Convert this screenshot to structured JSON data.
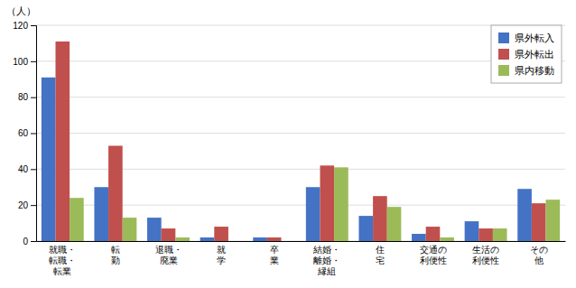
{
  "chart_data": {
    "type": "bar",
    "ylabel": "（人）",
    "categories": [
      "就職・\n転職・\n転業",
      "転\n勤",
      "退職・\n廃業",
      "就\n学",
      "卒\n業",
      "結婚・\n離婚・\n縁組",
      "住\n宅",
      "交通の\n利便性",
      "生活の\n利便性",
      "その\n他"
    ],
    "series": [
      {
        "name": "県外転入",
        "color": "#4472C4",
        "values": [
          91,
          30,
          13,
          2,
          2,
          30,
          14,
          4,
          11,
          29
        ]
      },
      {
        "name": "県外転出",
        "color": "#C0504D",
        "values": [
          111,
          53,
          7,
          8,
          2,
          42,
          25,
          8,
          7,
          21
        ]
      },
      {
        "name": "県内移動",
        "color": "#9BBB59",
        "values": [
          24,
          13,
          2,
          0,
          0,
          41,
          19,
          2,
          7,
          23
        ]
      }
    ],
    "ylim": [
      0,
      120
    ],
    "yticks": [
      0,
      20,
      40,
      60,
      80,
      100,
      120
    ],
    "grid": true,
    "legend": "upper right"
  }
}
